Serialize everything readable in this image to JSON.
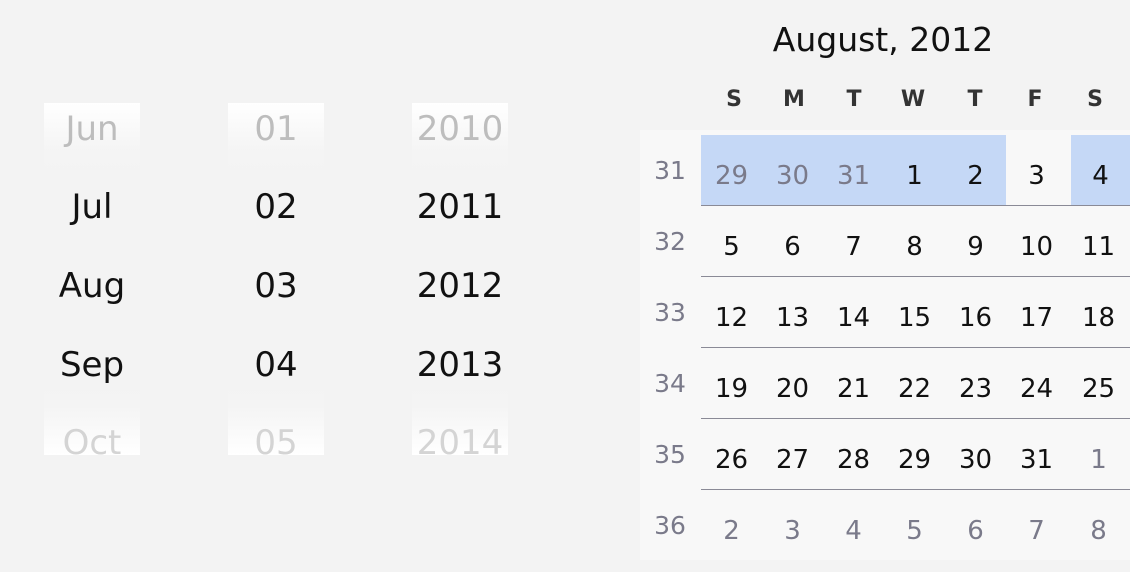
{
  "spinners": {
    "month": [
      "Jun",
      "Jul",
      "Aug",
      "Sep",
      "Oct"
    ],
    "day": [
      "01",
      "02",
      "03",
      "04",
      "05"
    ],
    "year": [
      "2010",
      "2011",
      "2012",
      "2013",
      "2014"
    ]
  },
  "calendar": {
    "title": "August, 2012",
    "weekdays": [
      "S",
      "M",
      "T",
      "W",
      "T",
      "F",
      "S"
    ],
    "weeks": [
      {
        "number": "31",
        "days": [
          "29",
          "30",
          "31",
          "1",
          "2",
          "3",
          "4"
        ]
      },
      {
        "number": "32",
        "days": [
          "5",
          "6",
          "7",
          "8",
          "9",
          "10",
          "11"
        ]
      },
      {
        "number": "33",
        "days": [
          "12",
          "13",
          "14",
          "15",
          "16",
          "17",
          "18"
        ]
      },
      {
        "number": "34",
        "days": [
          "19",
          "20",
          "21",
          "22",
          "23",
          "24",
          "25"
        ]
      },
      {
        "number": "35",
        "days": [
          "26",
          "27",
          "28",
          "29",
          "30",
          "31",
          "1"
        ]
      },
      {
        "number": "36",
        "days": [
          "2",
          "3",
          "4",
          "5",
          "6",
          "7",
          "8"
        ]
      }
    ],
    "colors": {
      "selection": "#c5d8f6",
      "outside_month_text": "#7a7a8a",
      "week_number_text": "#7a7a8a"
    }
  }
}
